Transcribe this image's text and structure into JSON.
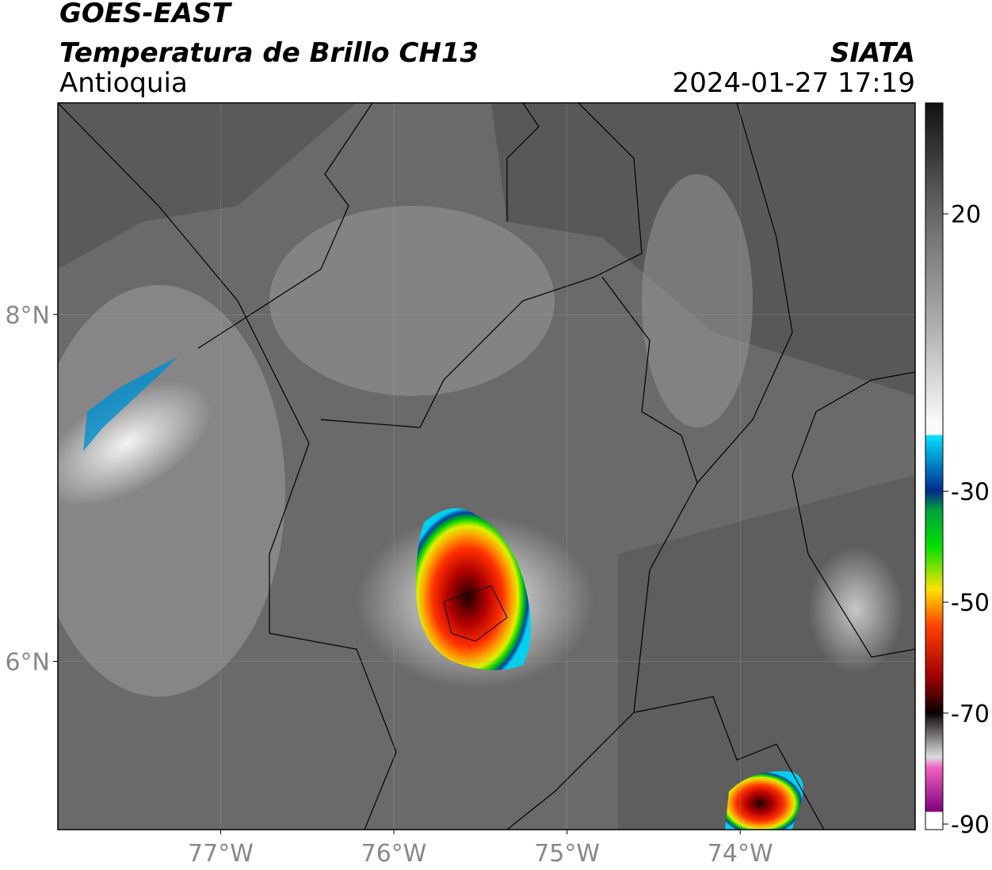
{
  "header": {
    "title": "GOES-EAST",
    "subtitle": "Temperatura de Brillo CH13",
    "region": "Antioquia",
    "source": "SIATA",
    "datetime": "2024-01-27 17:19"
  },
  "map": {
    "xlim": [
      -77.94,
      -72.99
    ],
    "ylim": [
      5.03,
      9.22
    ],
    "xticks": [
      {
        "value": -77,
        "label": "77°W"
      },
      {
        "value": -76,
        "label": "76°W"
      },
      {
        "value": -75,
        "label": "75°W"
      },
      {
        "value": -74,
        "label": "74°W"
      }
    ],
    "yticks": [
      {
        "value": 8,
        "label": "8°N"
      },
      {
        "value": 6,
        "label": "6°N"
      }
    ],
    "grid": true
  },
  "colorbar": {
    "lim": [
      -91,
      40
    ],
    "ticks": [
      20,
      -30,
      -50,
      -70,
      -90
    ]
  }
}
